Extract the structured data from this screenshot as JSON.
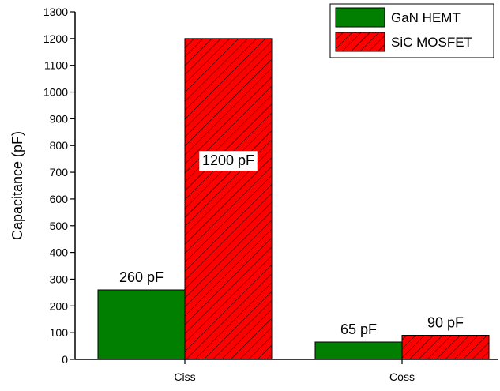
{
  "chart_data": {
    "type": "bar",
    "title": "",
    "xlabel": "",
    "ylabel": "Capacitance (pF)",
    "ylim": [
      0,
      1300
    ],
    "ytick_step": 100,
    "categories": [
      "Ciss",
      "Coss"
    ],
    "series": [
      {
        "name": "GaN HEMT",
        "values": [
          260,
          65
        ],
        "labels": [
          "260 pF",
          "65 pF"
        ],
        "color": "#007f00",
        "pattern": "solid"
      },
      {
        "name": "SiC MOSFET",
        "values": [
          1200,
          90
        ],
        "labels": [
          "1200 pF",
          "90 pF"
        ],
        "color": "#ff0000",
        "pattern": "diagonal-hatch"
      }
    ],
    "legend_position": "top-right",
    "grid": false
  }
}
